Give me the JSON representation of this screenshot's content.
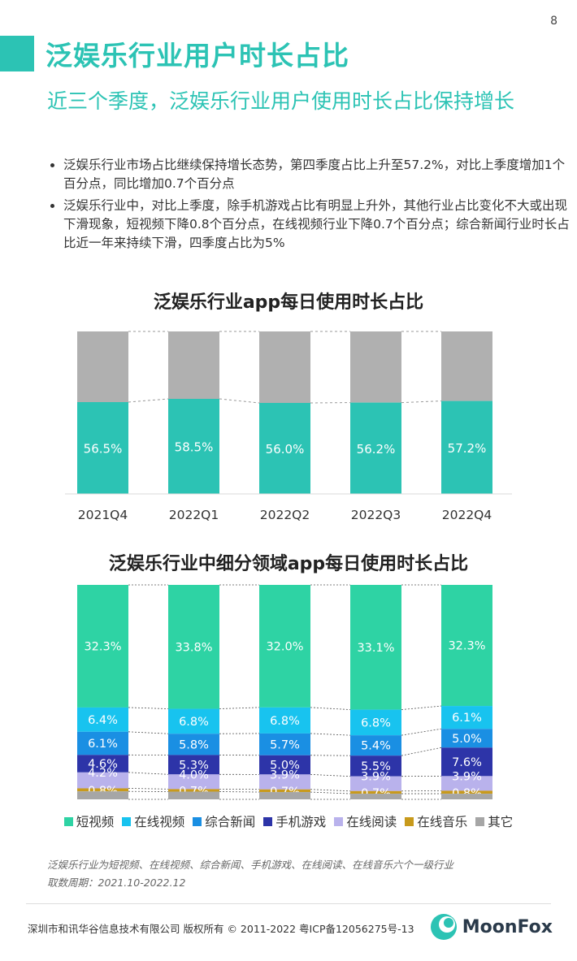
{
  "page_number": "8",
  "title": "泛娱乐行业用户时长占比",
  "subtitle": "近三个季度，泛娱乐行业用户使用时长占比保持增长",
  "bullets": [
    "泛娱乐行业市场占比继续保持增长态势，第四季度占比上升至57.2%，对比上季度增加1个百分点，同比增加0.7个百分点",
    "泛娱乐行业中，对比上季度，除手机游戏占比有明显上升外，其他行业占比变化不大或出现下滑现象，短视频下降0.8个百分点，在线视频行业下降0.7个百分点；综合新闻行业时长占比近一年来持续下滑，四季度占比为5%"
  ],
  "colors": {
    "accent": "#2cc3b4",
    "gray": "#b0b0b0",
    "series": [
      "#2ed3a4",
      "#18c3ef",
      "#1a8fe3",
      "#2d34a8",
      "#b9b2ec",
      "#c89a1c",
      "#a6a6a6"
    ]
  },
  "chart_data": [
    {
      "type": "bar",
      "title": "泛娱乐行业app每日使用时长占比",
      "categories": [
        "2021Q4",
        "2022Q1",
        "2022Q2",
        "2022Q3",
        "2022Q4"
      ],
      "values": [
        56.5,
        58.5,
        56.0,
        56.2,
        57.2
      ],
      "value_labels": [
        "56.5%",
        "58.5%",
        "56.0%",
        "56.2%",
        "57.2%"
      ],
      "stacked_total": 100,
      "ylim": [
        0,
        100
      ]
    },
    {
      "type": "bar",
      "title": "泛娱乐行业中细分领域app每日使用时长占比",
      "categories": [
        "2021Q4",
        "2022Q1",
        "2022Q2",
        "2022Q3",
        "2022Q4"
      ],
      "series": [
        {
          "name": "短视频",
          "values": [
            32.3,
            33.8,
            32.0,
            33.1,
            32.3
          ],
          "labels": [
            "32.3%",
            "33.8%",
            "32.0%",
            "33.1%",
            "32.3%"
          ]
        },
        {
          "name": "在线视频",
          "values": [
            6.4,
            6.8,
            6.8,
            6.8,
            6.1
          ],
          "labels": [
            "6.4%",
            "6.8%",
            "6.8%",
            "6.8%",
            "6.1%"
          ]
        },
        {
          "name": "综合新闻",
          "values": [
            6.1,
            5.8,
            5.7,
            5.4,
            5.0
          ],
          "labels": [
            "6.1%",
            "5.8%",
            "5.7%",
            "5.4%",
            "5.0%"
          ]
        },
        {
          "name": "手机游戏",
          "values": [
            4.6,
            5.3,
            5.0,
            5.5,
            7.6
          ],
          "labels": [
            "4.6%",
            "5.3%",
            "5.0%",
            "5.5%",
            "7.6%"
          ]
        },
        {
          "name": "在线阅读",
          "values": [
            4.2,
            4.0,
            3.9,
            3.9,
            3.9
          ],
          "labels": [
            "4.2%",
            "4.0%",
            "3.9%",
            "3.9%",
            "3.9%"
          ]
        },
        {
          "name": "在线音乐",
          "values": [
            0.8,
            0.7,
            0.7,
            0.7,
            0.8
          ],
          "labels": [
            "0.8%",
            "0.7%",
            "0.7%",
            "0.7%",
            "0.8%"
          ]
        },
        {
          "name": "其它",
          "values": [
            2.1,
            2.1,
            1.9,
            1.5,
            1.5
          ],
          "labels": [
            "",
            "",
            "",
            "",
            ""
          ]
        }
      ],
      "legend_position": "bottom"
    }
  ],
  "notes": [
    "泛娱乐行业为短视频、在线视频、综合新闻、手机游戏、在线阅读、在线音乐六个一级行业",
    "取数周期：2021.10-2022.12"
  ],
  "footer": {
    "copyright": "深圳市和讯华谷信息技术有限公司 版权所有 © 2011-2022 粤ICP备12056275号-13",
    "logo_text": "MoonFox"
  }
}
